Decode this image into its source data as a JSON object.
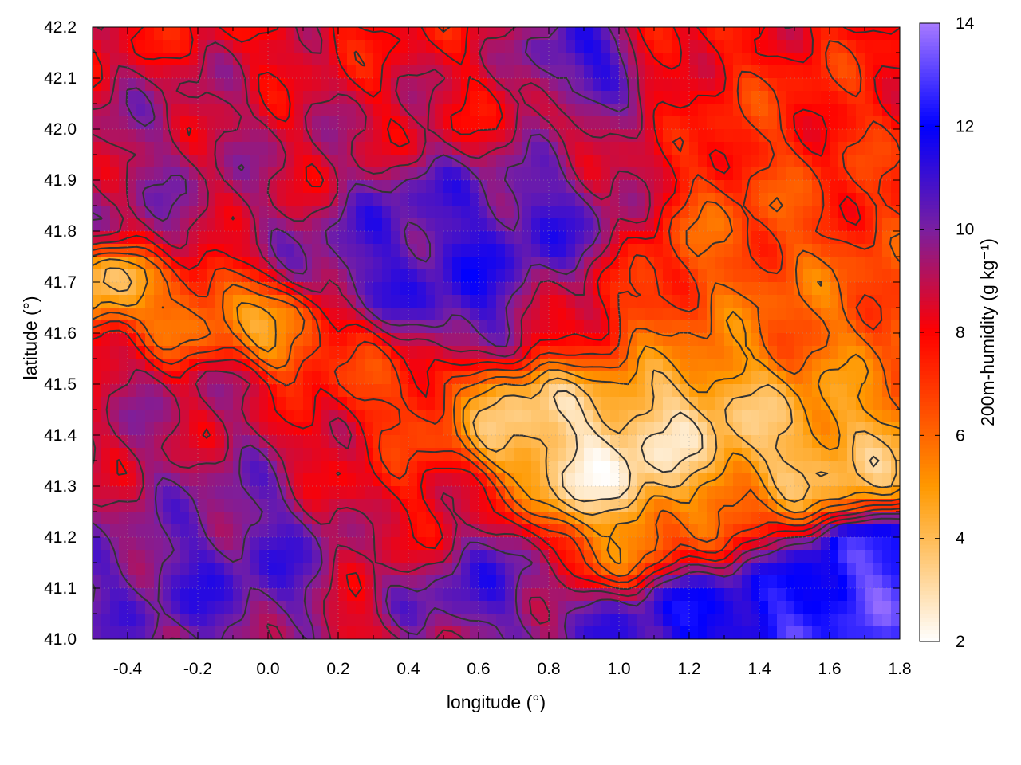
{
  "chart_data": {
    "type": "heatmap",
    "title": "",
    "xlabel": "longitude (°)",
    "ylabel": "latitude (°)",
    "colorbar_label": "200m-humidity (g kg⁻¹)",
    "xlim": [
      -0.5,
      1.8
    ],
    "ylim": [
      41.0,
      42.2
    ],
    "clim": [
      2,
      14
    ],
    "x_ticks": [
      "-0.4",
      "-0.2",
      "0.0",
      "0.2",
      "0.4",
      "0.6",
      "0.8",
      "1.0",
      "1.2",
      "1.4",
      "1.6",
      "1.8"
    ],
    "x_tick_values": [
      -0.4,
      -0.2,
      0.0,
      0.2,
      0.4,
      0.6,
      0.8,
      1.0,
      1.2,
      1.4,
      1.6,
      1.8
    ],
    "y_ticks": [
      "41.0",
      "41.1",
      "41.2",
      "41.3",
      "41.4",
      "41.5",
      "41.6",
      "41.7",
      "41.8",
      "41.9",
      "42.0",
      "42.1",
      "42.2"
    ],
    "y_tick_values": [
      41.0,
      41.1,
      41.2,
      41.3,
      41.4,
      41.5,
      41.6,
      41.7,
      41.8,
      41.9,
      42.0,
      42.1,
      42.2
    ],
    "colorbar_ticks": [
      "2",
      "4",
      "6",
      "8",
      "10",
      "12",
      "14"
    ],
    "colorbar_tick_values": [
      2,
      4,
      6,
      8,
      10,
      12,
      14
    ],
    "grid": true,
    "colormap_stops": [
      {
        "value": 2,
        "color": "#ffffff"
      },
      {
        "value": 5,
        "color": "#ff9900"
      },
      {
        "value": 8,
        "color": "#ff0000"
      },
      {
        "value": 10,
        "color": "#7a1fa0"
      },
      {
        "value": 12,
        "color": "#0000ff"
      },
      {
        "value": 14,
        "color": "#a87bff"
      }
    ],
    "contour_color": "#333333",
    "field_blobs": [
      {
        "x": -0.3,
        "y": 41.9,
        "v": 9.5,
        "r": 0.18
      },
      {
        "x": 0.05,
        "y": 41.95,
        "v": 8.8,
        "r": 0.15
      },
      {
        "x": 0.45,
        "y": 41.75,
        "v": 11.0,
        "r": 0.18
      },
      {
        "x": 0.62,
        "y": 41.68,
        "v": 11.5,
        "r": 0.15
      },
      {
        "x": 0.85,
        "y": 41.82,
        "v": 11.0,
        "r": 0.14
      },
      {
        "x": 0.88,
        "y": 42.12,
        "v": 11.5,
        "r": 0.08
      },
      {
        "x": 0.6,
        "y": 42.05,
        "v": 8.5,
        "r": 0.12
      },
      {
        "x": 1.05,
        "y": 41.95,
        "v": 9.0,
        "r": 0.12
      },
      {
        "x": 1.35,
        "y": 41.8,
        "v": 6.2,
        "r": 0.22
      },
      {
        "x": 1.6,
        "y": 41.95,
        "v": 7.5,
        "r": 0.18
      },
      {
        "x": 1.55,
        "y": 41.55,
        "v": 5.8,
        "r": 0.18
      },
      {
        "x": -0.45,
        "y": 41.7,
        "v": 3.0,
        "r": 0.07
      },
      {
        "x": -0.2,
        "y": 41.65,
        "v": 5.5,
        "r": 0.1
      },
      {
        "x": 0.05,
        "y": 41.6,
        "v": 4.5,
        "r": 0.07
      },
      {
        "x": 0.3,
        "y": 41.55,
        "v": 7.0,
        "r": 0.1
      },
      {
        "x": -0.3,
        "y": 41.35,
        "v": 9.2,
        "r": 0.2
      },
      {
        "x": -0.15,
        "y": 41.15,
        "v": 11.0,
        "r": 0.15
      },
      {
        "x": -0.4,
        "y": 41.1,
        "v": 10.5,
        "r": 0.1
      },
      {
        "x": 0.0,
        "y": 41.25,
        "v": 10.5,
        "r": 0.12
      },
      {
        "x": 0.2,
        "y": 41.35,
        "v": 8.0,
        "r": 0.12
      },
      {
        "x": 0.45,
        "y": 41.25,
        "v": 8.0,
        "r": 0.12
      },
      {
        "x": 0.6,
        "y": 41.12,
        "v": 10.8,
        "r": 0.12
      },
      {
        "x": 0.45,
        "y": 41.45,
        "v": 6.5,
        "r": 0.1
      },
      {
        "x": 0.75,
        "y": 41.45,
        "v": 3.0,
        "r": 0.12
      },
      {
        "x": 1.0,
        "y": 41.33,
        "v": 2.2,
        "r": 0.13
      },
      {
        "x": 1.2,
        "y": 41.45,
        "v": 3.2,
        "r": 0.14
      },
      {
        "x": 1.45,
        "y": 41.4,
        "v": 3.5,
        "r": 0.15
      },
      {
        "x": 1.65,
        "y": 41.35,
        "v": 3.8,
        "r": 0.12
      },
      {
        "x": 1.0,
        "y": 41.18,
        "v": 5.5,
        "r": 0.1
      },
      {
        "x": 1.3,
        "y": 41.22,
        "v": 6.5,
        "r": 0.12
      },
      {
        "x": 1.05,
        "y": 41.03,
        "v": 11.0,
        "r": 0.1
      },
      {
        "x": 1.3,
        "y": 41.05,
        "v": 12.5,
        "r": 0.13
      },
      {
        "x": 1.6,
        "y": 41.08,
        "v": 13.0,
        "r": 0.14
      },
      {
        "x": 1.78,
        "y": 41.15,
        "v": 13.5,
        "r": 0.1
      },
      {
        "x": 0.8,
        "y": 41.05,
        "v": 10.0,
        "r": 0.08
      },
      {
        "x": 0.85,
        "y": 41.62,
        "v": 7.5,
        "r": 0.12
      },
      {
        "x": 1.1,
        "y": 41.62,
        "v": 6.5,
        "r": 0.12
      }
    ],
    "field_base": 8.0,
    "contour_levels": [
      3,
      4,
      5,
      6,
      7,
      8,
      9,
      10
    ]
  }
}
